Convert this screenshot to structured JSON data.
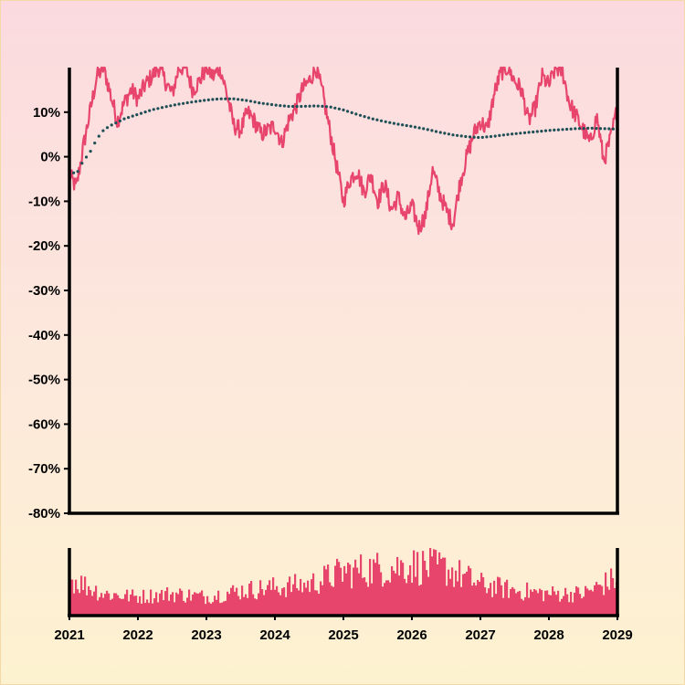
{
  "chart_data": {
    "type": "line",
    "colors": {
      "price_line": "#e8456d",
      "trend_dots": "#1f4f56",
      "volume_bars": "#e8456d",
      "axes": "#000000"
    },
    "y_axis": {
      "ylim": [
        -80,
        20
      ],
      "ticks": [
        10,
        0,
        -10,
        -20,
        -30,
        -40,
        -50,
        -60,
        -70,
        -80
      ],
      "tick_labels": [
        "10%",
        "0%",
        "-10%",
        "-20%",
        "-30%",
        "-40%",
        "-50%",
        "-60%",
        "-70%",
        "-80%"
      ]
    },
    "x_axis": {
      "xlim": [
        2021,
        2029
      ],
      "ticks": [
        2021,
        2022,
        2023,
        2024,
        2025,
        2026,
        2027,
        2028,
        2029
      ],
      "tick_labels": [
        "2021",
        "2022",
        "2023",
        "2024",
        "2025",
        "2026",
        "2027",
        "2028",
        "2029"
      ]
    },
    "series": [
      {
        "kind": "line",
        "color": "#e8456d",
        "points": [
          [
            2021.0,
            -4
          ],
          [
            2021.1,
            -7
          ],
          [
            2021.2,
            2
          ],
          [
            2021.3,
            10
          ],
          [
            2021.4,
            18
          ],
          [
            2021.5,
            20
          ],
          [
            2021.6,
            14
          ],
          [
            2021.7,
            8
          ],
          [
            2021.8,
            12
          ],
          [
            2021.9,
            15
          ],
          [
            2022.0,
            13
          ],
          [
            2022.1,
            16
          ],
          [
            2022.2,
            18
          ],
          [
            2022.3,
            20
          ],
          [
            2022.4,
            17
          ],
          [
            2022.5,
            14
          ],
          [
            2022.6,
            20
          ],
          [
            2022.7,
            20
          ],
          [
            2022.8,
            15
          ],
          [
            2022.9,
            17
          ],
          [
            2023.0,
            20
          ],
          [
            2023.1,
            18
          ],
          [
            2023.2,
            20
          ],
          [
            2023.3,
            14
          ],
          [
            2023.4,
            7
          ],
          [
            2023.5,
            6
          ],
          [
            2023.6,
            10
          ],
          [
            2023.7,
            8
          ],
          [
            2023.8,
            5
          ],
          [
            2023.9,
            6
          ],
          [
            2024.0,
            7
          ],
          [
            2024.1,
            3
          ],
          [
            2024.2,
            8
          ],
          [
            2024.3,
            11
          ],
          [
            2024.4,
            15
          ],
          [
            2024.5,
            17
          ],
          [
            2024.6,
            20
          ],
          [
            2024.7,
            14
          ],
          [
            2024.8,
            6
          ],
          [
            2024.9,
            -2
          ],
          [
            2025.0,
            -10
          ],
          [
            2025.1,
            -5
          ],
          [
            2025.2,
            -3
          ],
          [
            2025.3,
            -8
          ],
          [
            2025.4,
            -4
          ],
          [
            2025.5,
            -10
          ],
          [
            2025.6,
            -6
          ],
          [
            2025.7,
            -12
          ],
          [
            2025.8,
            -9
          ],
          [
            2025.9,
            -14
          ],
          [
            2026.0,
            -11
          ],
          [
            2026.1,
            -16
          ],
          [
            2026.2,
            -13
          ],
          [
            2026.3,
            -3
          ],
          [
            2026.4,
            -8
          ],
          [
            2026.5,
            -12
          ],
          [
            2026.6,
            -15
          ],
          [
            2026.7,
            -6
          ],
          [
            2026.8,
            0
          ],
          [
            2026.9,
            5
          ],
          [
            2027.0,
            8
          ],
          [
            2027.1,
            6
          ],
          [
            2027.2,
            14
          ],
          [
            2027.3,
            19
          ],
          [
            2027.4,
            20
          ],
          [
            2027.5,
            17
          ],
          [
            2027.6,
            15
          ],
          [
            2027.7,
            8
          ],
          [
            2027.8,
            11
          ],
          [
            2027.9,
            18
          ],
          [
            2028.0,
            16
          ],
          [
            2028.1,
            20
          ],
          [
            2028.2,
            19
          ],
          [
            2028.3,
            12
          ],
          [
            2028.4,
            9
          ],
          [
            2028.5,
            6
          ],
          [
            2028.6,
            3
          ],
          [
            2028.7,
            9
          ],
          [
            2028.8,
            -1
          ],
          [
            2028.9,
            4
          ],
          [
            2029.0,
            11
          ]
        ]
      },
      {
        "kind": "dotted_trend",
        "color": "#1f4f56",
        "points": [
          [
            2021.0,
            -3
          ],
          [
            2021.1,
            -4
          ],
          [
            2021.2,
            -1
          ],
          [
            2021.3,
            1
          ],
          [
            2021.4,
            4
          ],
          [
            2021.5,
            6
          ],
          [
            2021.6,
            7
          ],
          [
            2021.8,
            8.5
          ],
          [
            2022.0,
            9.5
          ],
          [
            2022.2,
            10.5
          ],
          [
            2022.4,
            11.2
          ],
          [
            2022.6,
            11.8
          ],
          [
            2022.8,
            12.3
          ],
          [
            2023.0,
            12.7
          ],
          [
            2023.2,
            13.0
          ],
          [
            2023.4,
            13.0
          ],
          [
            2023.6,
            12.6
          ],
          [
            2023.8,
            12.0
          ],
          [
            2024.0,
            11.6
          ],
          [
            2024.2,
            11.3
          ],
          [
            2024.4,
            11.3
          ],
          [
            2024.6,
            11.4
          ],
          [
            2024.8,
            11.2
          ],
          [
            2025.0,
            10.5
          ],
          [
            2025.2,
            9.5
          ],
          [
            2025.4,
            8.6
          ],
          [
            2025.6,
            7.9
          ],
          [
            2025.8,
            7.3
          ],
          [
            2026.0,
            6.8
          ],
          [
            2026.2,
            6.2
          ],
          [
            2026.4,
            5.5
          ],
          [
            2026.6,
            4.9
          ],
          [
            2026.8,
            4.5
          ],
          [
            2027.0,
            4.3
          ],
          [
            2027.2,
            4.6
          ],
          [
            2027.4,
            5.0
          ],
          [
            2027.6,
            5.3
          ],
          [
            2027.8,
            5.6
          ],
          [
            2028.0,
            5.9
          ],
          [
            2028.2,
            6.1
          ],
          [
            2028.4,
            6.3
          ],
          [
            2028.6,
            6.4
          ],
          [
            2028.8,
            6.3
          ],
          [
            2029.0,
            6.2
          ]
        ]
      },
      {
        "kind": "volume_bars",
        "color": "#e8456d",
        "x": [
          2021.0,
          2021.5,
          2022.0,
          2022.5,
          2023.0,
          2023.5,
          2024.0,
          2024.5,
          2025.0,
          2025.5,
          2026.0,
          2026.5,
          2027.0,
          2027.5,
          2028.0,
          2028.5,
          2029.0
        ],
        "values": [
          0.6,
          0.35,
          0.3,
          0.35,
          0.3,
          0.4,
          0.45,
          0.5,
          0.7,
          0.75,
          0.8,
          0.75,
          0.5,
          0.4,
          0.35,
          0.35,
          0.6
        ]
      }
    ]
  }
}
